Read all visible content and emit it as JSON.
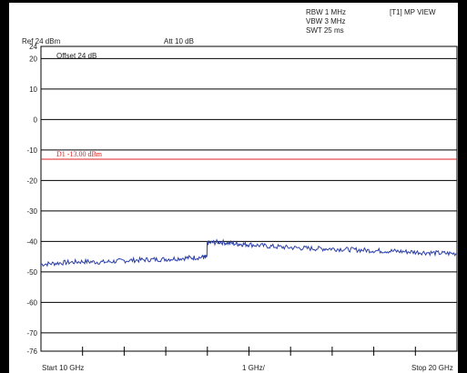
{
  "header": {
    "rbw": "RBW 1 MHz",
    "vbw": "VBW 3 MHz",
    "swt": "SWT 25 ms",
    "trace_mode": "[T1] MP VIEW",
    "ref_level": "Ref 24 dBm",
    "attenuation": "Att 10 dB",
    "offset": "Offset 24 dB"
  },
  "footer": {
    "start": "Start 10 GHz",
    "span_per_div": "1 GHz/",
    "stop": "Stop 20 GHz"
  },
  "chart_data": {
    "type": "line",
    "title": "",
    "xlabel": "",
    "ylabel": "",
    "xlim": [
      10,
      20
    ],
    "ylim": [
      -76,
      24
    ],
    "x_unit": "GHz",
    "y_unit": "dBm",
    "y_ticks": [
      24,
      20,
      10,
      0,
      -10,
      -20,
      -30,
      -40,
      -50,
      -60,
      -70,
      -76
    ],
    "y_tick_labels": [
      "24",
      "20",
      "10",
      "0",
      "-10",
      "-20",
      "-30",
      "-40",
      "-50",
      "-60",
      "-70",
      "-76"
    ],
    "grid": true,
    "limit_line": {
      "label": "D1 -13.00 dBm",
      "value": -13,
      "color": "#dd2222"
    },
    "series": [
      {
        "color": "#2b3fa8",
        "x": [
          10.0,
          10.5,
          11.0,
          11.5,
          12.0,
          12.5,
          13.0,
          13.5,
          13.9,
          14.0,
          14.3,
          14.7,
          15.0,
          15.5,
          16.0,
          16.5,
          17.0,
          17.5,
          18.0,
          18.5,
          19.0,
          19.5,
          20.0
        ],
        "y": [
          -47.5,
          -47.0,
          -46.6,
          -46.8,
          -46.3,
          -46.0,
          -45.8,
          -45.4,
          -45.2,
          -40.5,
          -40.2,
          -40.8,
          -41.0,
          -41.6,
          -42.0,
          -42.3,
          -42.4,
          -42.7,
          -43.0,
          -43.2,
          -43.5,
          -43.8,
          -44.0
        ]
      }
    ]
  },
  "colors": {
    "trace": "#2b3fa8",
    "limit_line": "#dd2222",
    "grid": "#000000",
    "frame": "#000000"
  }
}
